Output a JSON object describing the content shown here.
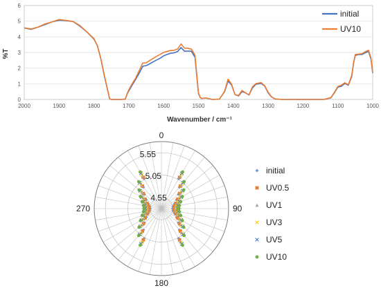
{
  "chart_data": [
    {
      "type": "line",
      "title": "",
      "xlabel": "Wavenumber / cm⁻¹",
      "ylabel": "%T",
      "xlim": [
        2000,
        1000
      ],
      "ylim": [
        0,
        6
      ],
      "x_reversed": true,
      "x_ticks": [
        2000,
        1900,
        1800,
        1700,
        1600,
        1500,
        1400,
        1300,
        1200,
        1100,
        1000
      ],
      "y_ticks": [
        0,
        1,
        2,
        3,
        4,
        5,
        6
      ],
      "grid": "horizontal",
      "legend": "top-right",
      "series": [
        {
          "name": "initial",
          "color": "#4472C4",
          "points": [
            [
              2000,
              4.55
            ],
            [
              1980,
              4.5
            ],
            [
              1960,
              4.6
            ],
            [
              1940,
              4.8
            ],
            [
              1920,
              4.95
            ],
            [
              1900,
              5.05
            ],
            [
              1880,
              5.05
            ],
            [
              1860,
              4.95
            ],
            [
              1840,
              4.7
            ],
            [
              1820,
              4.3
            ],
            [
              1800,
              3.85
            ],
            [
              1790,
              3.4
            ],
            [
              1780,
              2.6
            ],
            [
              1770,
              1.5
            ],
            [
              1760,
              0.5
            ],
            [
              1755,
              0.05
            ],
            [
              1750,
              0
            ],
            [
              1740,
              0
            ],
            [
              1720,
              0
            ],
            [
              1710,
              0.02
            ],
            [
              1705,
              0.3
            ],
            [
              1700,
              0.55
            ],
            [
              1690,
              0.9
            ],
            [
              1680,
              1.3
            ],
            [
              1670,
              1.7
            ],
            [
              1660,
              2.1
            ],
            [
              1650,
              2.15
            ],
            [
              1640,
              2.3
            ],
            [
              1630,
              2.4
            ],
            [
              1620,
              2.5
            ],
            [
              1610,
              2.65
            ],
            [
              1600,
              2.8
            ],
            [
              1590,
              2.85
            ],
            [
              1580,
              2.95
            ],
            [
              1570,
              3.0
            ],
            [
              1560,
              3.05
            ],
            [
              1550,
              3.3
            ],
            [
              1540,
              3.1
            ],
            [
              1530,
              3.1
            ],
            [
              1520,
              3.05
            ],
            [
              1510,
              2.7
            ],
            [
              1505,
              1.5
            ],
            [
              1500,
              0.4
            ],
            [
              1495,
              0.12
            ],
            [
              1490,
              0.06
            ],
            [
              1480,
              0.1
            ],
            [
              1470,
              0.05
            ],
            [
              1460,
              0.0
            ],
            [
              1440,
              0.02
            ],
            [
              1425,
              0.5
            ],
            [
              1415,
              1.2
            ],
            [
              1405,
              0.9
            ],
            [
              1395,
              0.3
            ],
            [
              1385,
              0.25
            ],
            [
              1375,
              0.5
            ],
            [
              1365,
              0.4
            ],
            [
              1355,
              0.3
            ],
            [
              1345,
              0.75
            ],
            [
              1335,
              0.95
            ],
            [
              1320,
              1.0
            ],
            [
              1310,
              0.85
            ],
            [
              1300,
              0.45
            ],
            [
              1290,
              0.15
            ],
            [
              1280,
              0.03
            ],
            [
              1260,
              0.0
            ],
            [
              1200,
              0.0
            ],
            [
              1140,
              0.0
            ],
            [
              1120,
              0.1
            ],
            [
              1110,
              0.4
            ],
            [
              1100,
              0.8
            ],
            [
              1090,
              0.85
            ],
            [
              1080,
              1.0
            ],
            [
              1070,
              0.9
            ],
            [
              1060,
              1.5
            ],
            [
              1055,
              2.3
            ],
            [
              1050,
              2.8
            ],
            [
              1040,
              2.85
            ],
            [
              1030,
              2.9
            ],
            [
              1020,
              3.0
            ],
            [
              1012,
              3.1
            ],
            [
              1005,
              2.6
            ],
            [
              1000,
              1.7
            ]
          ]
        },
        {
          "name": "UV10",
          "color": "#ED7D31",
          "points": [
            [
              2000,
              4.55
            ],
            [
              1980,
              4.52
            ],
            [
              1960,
              4.62
            ],
            [
              1940,
              4.82
            ],
            [
              1920,
              4.97
            ],
            [
              1900,
              5.08
            ],
            [
              1880,
              5.07
            ],
            [
              1860,
              4.97
            ],
            [
              1840,
              4.72
            ],
            [
              1820,
              4.32
            ],
            [
              1800,
              3.87
            ],
            [
              1790,
              3.42
            ],
            [
              1780,
              2.62
            ],
            [
              1770,
              1.52
            ],
            [
              1760,
              0.52
            ],
            [
              1755,
              0.05
            ],
            [
              1750,
              0
            ],
            [
              1740,
              0
            ],
            [
              1720,
              0
            ],
            [
              1710,
              0.03
            ],
            [
              1705,
              0.35
            ],
            [
              1700,
              0.6
            ],
            [
              1690,
              1.0
            ],
            [
              1680,
              1.4
            ],
            [
              1670,
              1.85
            ],
            [
              1660,
              2.3
            ],
            [
              1650,
              2.35
            ],
            [
              1640,
              2.5
            ],
            [
              1630,
              2.6
            ],
            [
              1620,
              2.75
            ],
            [
              1610,
              2.9
            ],
            [
              1600,
              3.0
            ],
            [
              1590,
              3.05
            ],
            [
              1580,
              3.15
            ],
            [
              1570,
              3.15
            ],
            [
              1560,
              3.2
            ],
            [
              1550,
              3.55
            ],
            [
              1540,
              3.3
            ],
            [
              1530,
              3.25
            ],
            [
              1520,
              3.2
            ],
            [
              1510,
              2.85
            ],
            [
              1505,
              1.6
            ],
            [
              1500,
              0.42
            ],
            [
              1495,
              0.13
            ],
            [
              1490,
              0.06
            ],
            [
              1480,
              0.1
            ],
            [
              1470,
              0.05
            ],
            [
              1460,
              0.0
            ],
            [
              1440,
              0.02
            ],
            [
              1425,
              0.55
            ],
            [
              1415,
              1.3
            ],
            [
              1405,
              0.95
            ],
            [
              1395,
              0.32
            ],
            [
              1385,
              0.27
            ],
            [
              1375,
              0.55
            ],
            [
              1365,
              0.42
            ],
            [
              1355,
              0.32
            ],
            [
              1345,
              0.8
            ],
            [
              1335,
              1.0
            ],
            [
              1320,
              1.05
            ],
            [
              1310,
              0.9
            ],
            [
              1300,
              0.48
            ],
            [
              1290,
              0.16
            ],
            [
              1280,
              0.03
            ],
            [
              1260,
              0.0
            ],
            [
              1200,
              0.0
            ],
            [
              1140,
              0.0
            ],
            [
              1120,
              0.12
            ],
            [
              1110,
              0.45
            ],
            [
              1100,
              0.85
            ],
            [
              1090,
              0.9
            ],
            [
              1080,
              1.05
            ],
            [
              1070,
              0.95
            ],
            [
              1060,
              1.55
            ],
            [
              1055,
              2.35
            ],
            [
              1050,
              2.85
            ],
            [
              1040,
              2.9
            ],
            [
              1030,
              2.95
            ],
            [
              1020,
              3.05
            ],
            [
              1012,
              3.15
            ],
            [
              1005,
              2.65
            ],
            [
              1000,
              1.75
            ]
          ]
        }
      ]
    },
    {
      "type": "scatter",
      "polar": true,
      "title": "",
      "r_ticks": [
        4.55,
        5.05,
        5.55
      ],
      "rlim": [
        4.3,
        5.8
      ],
      "angle_labels": [
        "0",
        "90",
        "180",
        "270"
      ],
      "angle_step_deg": 10,
      "legend": "right",
      "series": [
        {
          "name": "initial",
          "color": "#5B9BD5",
          "marker": "diamond"
        },
        {
          "name": "UV0.5",
          "color": "#ED7D31",
          "marker": "square"
        },
        {
          "name": "UV1",
          "color": "#A5A5A5",
          "marker": "triangle"
        },
        {
          "name": "UV3",
          "color": "#FFC000",
          "marker": "x"
        },
        {
          "name": "UV5",
          "color": "#4472C4",
          "marker": "x"
        },
        {
          "name": "UV10",
          "color": "#70AD47",
          "marker": "circle"
        }
      ]
    }
  ]
}
